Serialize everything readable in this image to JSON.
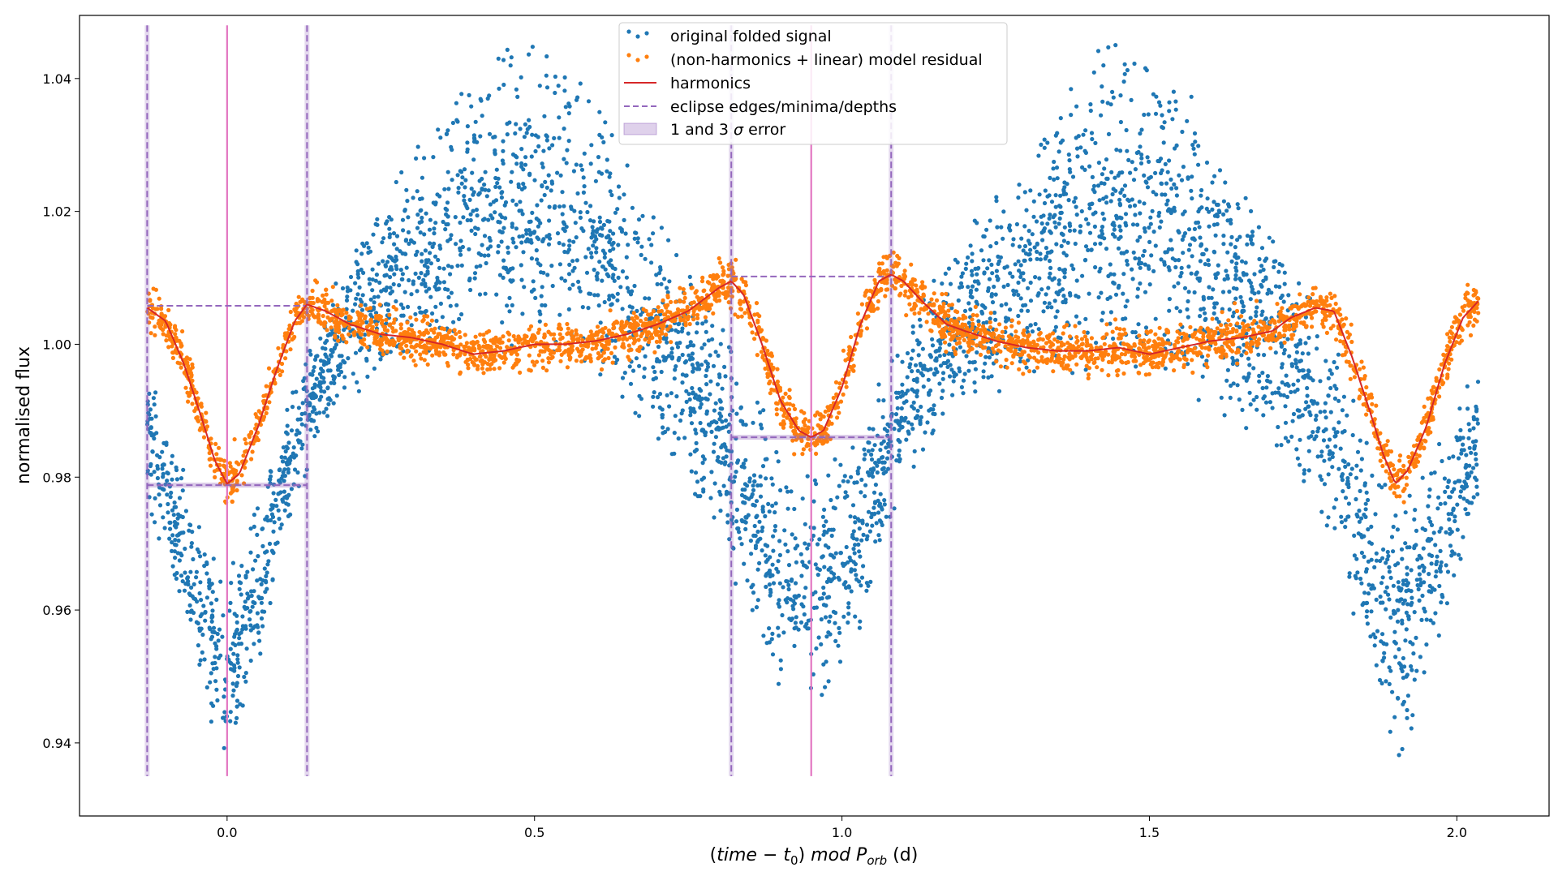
{
  "chart_data": {
    "type": "scatter",
    "xlabel_parts": {
      "pre": "(",
      "time": "time",
      "minus": " − ",
      "t": "t",
      "t_sub": "0",
      "close": ")",
      "mod": " mod ",
      "P": "P",
      "P_sub": "orb",
      "unit": " (d)"
    },
    "ylabel": "normalised flux",
    "xlim": [
      -0.24,
      2.15
    ],
    "ylim": [
      0.929,
      1.0495
    ],
    "xticks": [
      {
        "value": 0.0,
        "label": "0.0"
      },
      {
        "value": 0.5,
        "label": "0.5"
      },
      {
        "value": 1.0,
        "label": "1.0"
      },
      {
        "value": 1.5,
        "label": "1.5"
      },
      {
        "value": 2.0,
        "label": "2.0"
      }
    ],
    "yticks": [
      {
        "value": 0.94,
        "label": "0.94"
      },
      {
        "value": 0.96,
        "label": "0.96"
      },
      {
        "value": 0.98,
        "label": "0.98"
      },
      {
        "value": 1.0,
        "label": "1.00"
      },
      {
        "value": 1.02,
        "label": "1.02"
      },
      {
        "value": 1.04,
        "label": "1.04"
      }
    ],
    "grid": false,
    "legend_position": "top-center",
    "period": 1.9,
    "phase_range": [
      -0.13,
      2.035
    ],
    "series": [
      {
        "name": "original folded signal",
        "kind": "scatter",
        "color": "#1f77b4",
        "envelope_x": [
          -0.13,
          -0.1,
          -0.05,
          0.0,
          0.05,
          0.1,
          0.15,
          0.2,
          0.3,
          0.4,
          0.45,
          0.5,
          0.55,
          0.6,
          0.7,
          0.8,
          0.85,
          0.9,
          0.95,
          1.0,
          1.05,
          1.1,
          1.2,
          1.3,
          1.4,
          1.45,
          1.5,
          1.6,
          1.7,
          1.8,
          1.85,
          1.9,
          1.95,
          2.0,
          2.035
        ],
        "envelope_low": [
          0.975,
          0.965,
          0.948,
          0.935,
          0.95,
          0.972,
          0.986,
          0.992,
          0.996,
          0.997,
          0.997,
          0.997,
          0.996,
          0.992,
          0.982,
          0.97,
          0.957,
          0.946,
          0.944,
          0.948,
          0.962,
          0.978,
          0.99,
          0.994,
          0.995,
          0.995,
          0.994,
          0.99,
          0.982,
          0.968,
          0.952,
          0.936,
          0.946,
          0.962,
          0.975
        ],
        "envelope_high": [
          0.998,
          0.99,
          0.976,
          0.966,
          0.976,
          0.992,
          1.004,
          1.014,
          1.03,
          1.042,
          1.046,
          1.048,
          1.046,
          1.038,
          1.02,
          1.005,
          0.995,
          0.985,
          0.982,
          0.985,
          0.992,
          1.004,
          1.018,
          1.03,
          1.044,
          1.048,
          1.046,
          1.034,
          1.018,
          1.002,
          0.99,
          0.978,
          0.984,
          0.992,
          0.998
        ]
      },
      {
        "name": "(non-harmonics + linear) model residual",
        "kind": "scatter",
        "color": "#ff7f0e",
        "scatter_sigma": 0.0016
      },
      {
        "name": "harmonics",
        "kind": "line",
        "color": "#d62728",
        "x": [
          -0.13,
          -0.1,
          -0.07,
          -0.04,
          -0.02,
          0.0,
          0.02,
          0.05,
          0.08,
          0.11,
          0.13,
          0.16,
          0.2,
          0.25,
          0.3,
          0.35,
          0.4,
          0.45,
          0.5,
          0.55,
          0.6,
          0.65,
          0.7,
          0.75,
          0.8,
          0.82,
          0.84,
          0.87,
          0.9,
          0.93,
          0.95,
          0.97,
          1.0,
          1.03,
          1.06,
          1.08,
          1.1,
          1.13,
          1.17,
          1.2,
          1.25,
          1.3,
          1.35,
          1.4,
          1.45,
          1.5,
          1.55,
          1.6,
          1.65,
          1.7,
          1.73,
          1.77,
          1.8,
          1.83,
          1.86,
          1.88,
          1.9,
          1.92,
          1.95,
          1.98,
          2.01,
          2.035
        ],
        "y": [
          1.0055,
          1.0035,
          0.997,
          0.9885,
          0.9825,
          0.979,
          0.9805,
          0.9875,
          0.996,
          1.0035,
          1.006,
          1.005,
          1.003,
          1.0015,
          1.001,
          1.0,
          0.9985,
          0.999,
          1.0,
          1.0,
          1.0005,
          1.0015,
          1.003,
          1.005,
          1.0085,
          1.0095,
          1.0075,
          1.0,
          0.9915,
          0.987,
          0.986,
          0.987,
          0.9935,
          1.003,
          1.0095,
          1.0105,
          1.0095,
          1.0065,
          1.003,
          1.002,
          1.0005,
          0.9995,
          0.999,
          0.999,
          0.9995,
          0.9985,
          0.9995,
          1.0005,
          1.001,
          1.002,
          1.004,
          1.0055,
          1.005,
          0.998,
          0.9895,
          0.9835,
          0.979,
          0.981,
          0.9875,
          0.997,
          1.004,
          1.0065
        ]
      },
      {
        "name": "eclipse edges/minima/depths",
        "kind": "dashed-line",
        "color": "#9467bd",
        "eclipse_edges": [
          -0.13,
          0.13,
          0.82,
          1.08
        ],
        "primary_depth_level": [
          1.0058,
          0.9788
        ],
        "secondary_depth_level": [
          1.0102,
          0.986
        ]
      },
      {
        "name": "1 and 3 σ error",
        "kind": "band",
        "color": "#9467bd"
      }
    ],
    "minima_lines": {
      "color": "#e377c2",
      "x": [
        0.0,
        0.95
      ]
    },
    "vertical_span": [
      0.935,
      1.048
    ]
  },
  "legend": {
    "items": [
      {
        "label": "original folded signal"
      },
      {
        "label": "(non-harmonics + linear) model residual"
      },
      {
        "label": "harmonics"
      },
      {
        "label": "eclipse edges/minima/depths"
      },
      {
        "label_pre": "1 and 3 ",
        "label_sigma": "σ",
        "label_post": " error"
      }
    ]
  }
}
